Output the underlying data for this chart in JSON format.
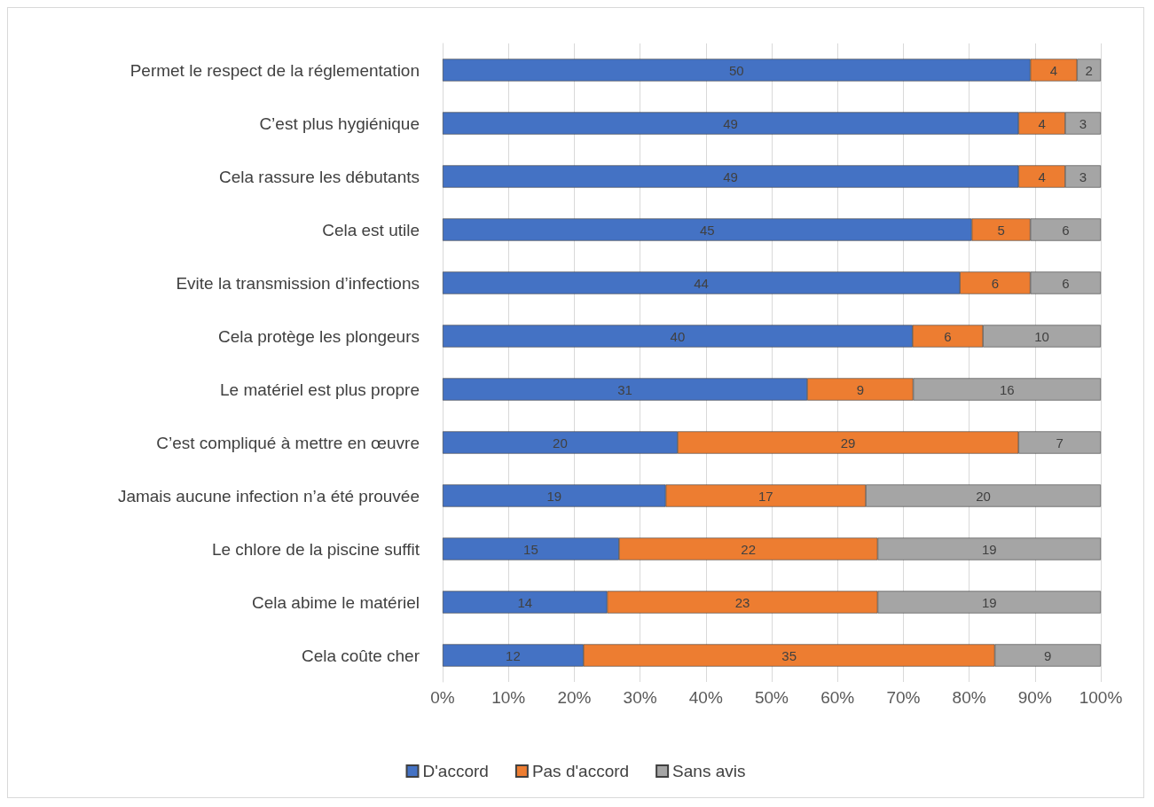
{
  "chart_data": {
    "type": "bar",
    "orientation": "horizontal",
    "stacked": true,
    "grid": "x",
    "legend": "bottom",
    "categories": [
      "Permet le respect de la réglementation",
      "C’est plus hygiénique",
      "Cela rassure les débutants",
      "Cela est utile",
      "Evite la transmission d’infections",
      "Cela protège les plongeurs",
      "Le matériel est plus propre",
      "C’est compliqué à mettre en œuvre",
      "Jamais aucune infection n’a été prouvée",
      "Le chlore de la piscine suffit",
      "Cela abime le matériel",
      "Cela coûte cher"
    ],
    "series": [
      {
        "name": "D'accord",
        "color": "#4472c4",
        "values": [
          89.3,
          87.5,
          87.5,
          80.4,
          78.6,
          71.4,
          55.4,
          35.7,
          33.9,
          26.8,
          25.0,
          21.4
        ]
      },
      {
        "name": "Pas d'accord",
        "color": "#ed7d31",
        "values": [
          7.1,
          7.1,
          7.1,
          8.9,
          10.7,
          10.7,
          16.1,
          51.8,
          30.4,
          39.3,
          41.1,
          62.5
        ]
      },
      {
        "name": "Sans avis",
        "color": "#a5a5a5",
        "values": [
          3.6,
          5.4,
          5.4,
          10.7,
          10.7,
          17.9,
          28.5,
          12.5,
          35.7,
          33.9,
          33.9,
          16.1
        ]
      }
    ],
    "annotations": [
      "50",
      "4",
      "2",
      "49",
      "4",
      "3",
      "49",
      "4",
      "3",
      "45",
      "5",
      "6",
      "44",
      "6",
      "6",
      "40",
      "6",
      "10",
      "31",
      "9",
      "16",
      "20",
      "29",
      "7",
      "19",
      "17",
      "20",
      "15",
      "22",
      "19",
      "14",
      "23",
      "19",
      "12",
      "35",
      "9"
    ],
    "xlim": [
      0,
      100
    ],
    "xticks": [
      {
        "value": 0,
        "label": "0%"
      },
      {
        "value": 10,
        "label": "10%"
      },
      {
        "value": 20,
        "label": "20%"
      },
      {
        "value": 30,
        "label": "30%"
      },
      {
        "value": 40,
        "label": "40%"
      },
      {
        "value": 50,
        "label": "50%"
      },
      {
        "value": 60,
        "label": "60%"
      },
      {
        "value": 70,
        "label": "70%"
      },
      {
        "value": 80,
        "label": "80%"
      },
      {
        "value": 90,
        "label": "90%"
      },
      {
        "value": 100,
        "label": "100%"
      }
    ]
  }
}
